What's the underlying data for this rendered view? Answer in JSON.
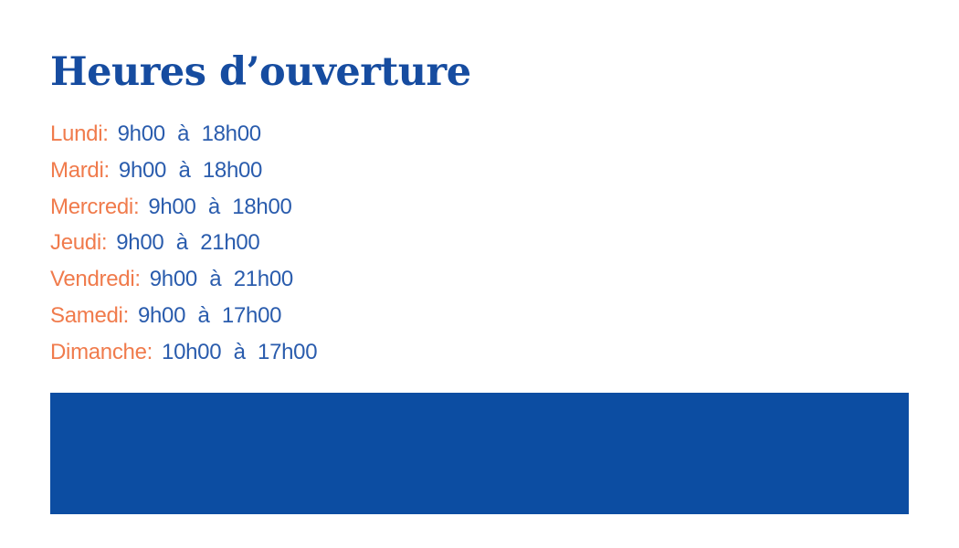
{
  "page": {
    "title": "Heures d’ouverture"
  },
  "hours": {
    "rows": [
      {
        "day": "Lundi:",
        "time": "9h00 à 18h00"
      },
      {
        "day": "Mardi:",
        "time": "9h00 à 18h00"
      },
      {
        "day": "Mercredi:",
        "time": "9h00 à 18h00"
      },
      {
        "day": "Jeudi:",
        "time": "9h00 à 21h00"
      },
      {
        "day": "Vendredi:",
        "time": "9h00 à 21h00"
      },
      {
        "day": "Samedi:",
        "time": "9h00 à 17h00"
      },
      {
        "day": "Dimanche:",
        "time": "10h00 à 17h00"
      }
    ]
  },
  "colors": {
    "title": "#164CA0",
    "day": "#F07B4C",
    "time": "#2A5CAD",
    "banner": "#0C4DA2"
  }
}
